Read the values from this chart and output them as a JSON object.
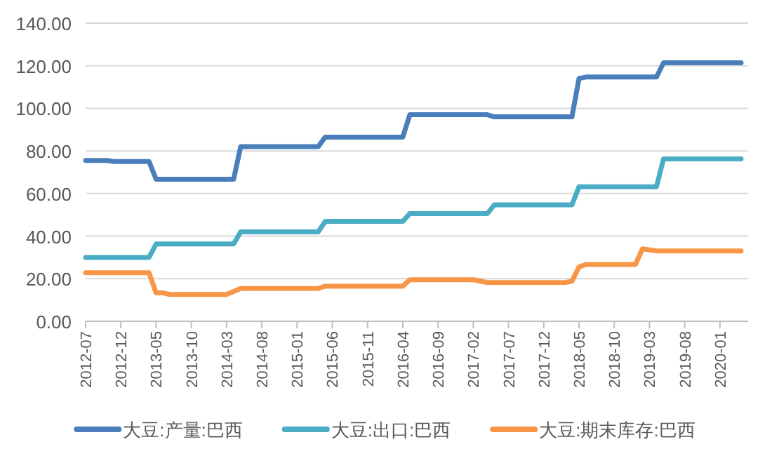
{
  "chart_data": {
    "type": "line",
    "xlim": [
      "2012-07",
      "2020-05"
    ],
    "xticks": [
      "2012-07",
      "2012-12",
      "2013-05",
      "2013-10",
      "2014-03",
      "2014-08",
      "2015-01",
      "2015-06",
      "2015-11",
      "2016-04",
      "2016-09",
      "2017-02",
      "2017-07",
      "2017-12",
      "2018-05",
      "2018-10",
      "2019-03",
      "2019-08",
      "2020-01"
    ],
    "ylim": [
      0,
      140
    ],
    "yticks": [
      {
        "value": 0,
        "label": "0.00"
      },
      {
        "value": 20,
        "label": "20.00"
      },
      {
        "value": 40,
        "label": "40.00"
      },
      {
        "value": 60,
        "label": "60.00"
      },
      {
        "value": 80,
        "label": "80.00"
      },
      {
        "value": 100,
        "label": "100.00"
      },
      {
        "value": 120,
        "label": "120.00"
      },
      {
        "value": 140,
        "label": "140.00"
      }
    ],
    "grid": "y",
    "legend": "bottom",
    "marker": "none",
    "line_style": "solid",
    "series": [
      {
        "name": "大豆:产量:巴西",
        "color": "#4a7ebb",
        "x": [
          "2012-07",
          "2012-10",
          "2012-11",
          "2013-04",
          "2013-05",
          "2014-04",
          "2014-05",
          "2015-04",
          "2015-05",
          "2016-04",
          "2016-05",
          "2017-04",
          "2017-05",
          "2018-04",
          "2018-05",
          "2018-06",
          "2019-04",
          "2019-05",
          "2020-04"
        ],
        "values": [
          75.5,
          75.5,
          75,
          75,
          66.7,
          66.7,
          82,
          82,
          86.5,
          86.5,
          97,
          97,
          96,
          96,
          114,
          114.7,
          114.7,
          121.4,
          121.4
        ]
      },
      {
        "name": "大豆:出口:巴西",
        "color": "#4bacc6",
        "x": [
          "2012-07",
          "2013-04",
          "2013-05",
          "2014-04",
          "2014-05",
          "2015-04",
          "2015-05",
          "2016-04",
          "2016-05",
          "2017-04",
          "2017-05",
          "2018-04",
          "2018-05",
          "2019-04",
          "2019-05",
          "2020-04"
        ],
        "values": [
          30,
          30,
          36.3,
          36.3,
          42,
          42,
          46.9,
          46.9,
          50.6,
          50.6,
          54.7,
          54.7,
          63.2,
          63.2,
          76.3,
          76.3
        ]
      },
      {
        "name": "大豆:期末库存:巴西",
        "color": "#f79646",
        "x": [
          "2012-07",
          "2013-04",
          "2013-05",
          "2013-06",
          "2013-07",
          "2014-03",
          "2014-05",
          "2015-04",
          "2015-05",
          "2016-04",
          "2016-05",
          "2017-02",
          "2017-04",
          "2018-03",
          "2018-04",
          "2018-05",
          "2018-06",
          "2019-01",
          "2019-02",
          "2019-04",
          "2020-04"
        ],
        "values": [
          22.8,
          22.8,
          13.3,
          13.3,
          12.6,
          12.6,
          15.4,
          15.4,
          16.5,
          16.5,
          19.5,
          19.5,
          18.2,
          18.2,
          18.8,
          25.5,
          26.7,
          26.7,
          34,
          33,
          33
        ]
      }
    ]
  }
}
